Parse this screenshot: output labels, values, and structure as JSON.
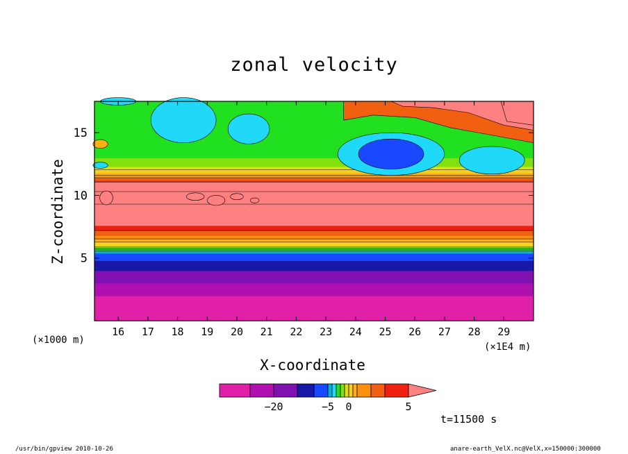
{
  "chart_data": {
    "type": "heatmap",
    "title": "zonal velocity",
    "xlabel": "X-coordinate",
    "ylabel": "Z-coordinate",
    "x_unit_left": "(×1000 m)",
    "x_unit_right": "(×1E4 m)",
    "xlim": [
      15.2,
      30.0
    ],
    "ylim": [
      0,
      17.5
    ],
    "x_ticks": [
      "16",
      "17",
      "18",
      "19",
      "20",
      "21",
      "22",
      "23",
      "24",
      "25",
      "26",
      "27",
      "28",
      "29"
    ],
    "y_ticks": [
      "5",
      "10",
      "15"
    ],
    "time_label": "t=11500 s",
    "colorbar": {
      "levels": [
        -30,
        -25,
        -20,
        -15,
        -10,
        -5,
        -4,
        -3,
        -2,
        -1,
        0,
        1,
        2,
        3,
        4,
        5,
        10,
        15
      ],
      "colors": [
        "#e020a8",
        "#b010b0",
        "#8010b0",
        "#1818a8",
        "#1848ff",
        "#00b0e0",
        "#20d8f8",
        "#20e020",
        "#80e010",
        "#e0e010",
        "#f8d020",
        "#ffb010",
        "#f89010",
        "#f06010",
        "#f02010",
        "#ff8080"
      ],
      "tick_labels": [
        {
          "value": -20,
          "label": "−20"
        },
        {
          "value": -5,
          "label": "−5"
        },
        {
          "value": 0,
          "label": "0"
        },
        {
          "value": 5,
          "label": "5"
        }
      ]
    },
    "profile_z": [
      0.0,
      2.0,
      3.0,
      4.0,
      4.8,
      5.4,
      6.0,
      6.8,
      7.6,
      8.6,
      10.0,
      11.2,
      11.8,
      12.3,
      13.0,
      14.5,
      17.5
    ],
    "profile_u": [
      -30,
      -25,
      -20,
      -15,
      -10,
      -5,
      0,
      3,
      5,
      8,
      12,
      4,
      1,
      -1,
      -2,
      -3,
      -2
    ]
  },
  "footer": {
    "left": "/usr/bin/gpview   2010-10-26",
    "right": "anare-earth_VelX.nc@VelX,x=150000:300000"
  }
}
